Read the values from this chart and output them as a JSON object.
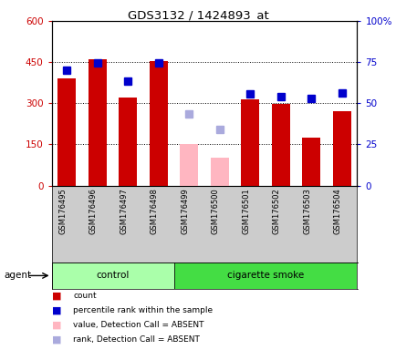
{
  "title": "GDS3132 / 1424893_at",
  "samples": [
    "GSM176495",
    "GSM176496",
    "GSM176497",
    "GSM176498",
    "GSM176499",
    "GSM176500",
    "GSM176501",
    "GSM176502",
    "GSM176503",
    "GSM176504"
  ],
  "count_values": [
    390,
    460,
    320,
    455,
    null,
    null,
    315,
    298,
    175,
    270
  ],
  "count_absent": [
    null,
    null,
    null,
    null,
    152,
    100,
    null,
    null,
    null,
    null
  ],
  "percentile_values": [
    420,
    448,
    380,
    448,
    null,
    null,
    335,
    325,
    318,
    338
  ],
  "percentile_absent": [
    null,
    null,
    null,
    null,
    260,
    205,
    null,
    null,
    null,
    null
  ],
  "left_ylim": [
    0,
    600
  ],
  "right_ylim": [
    0,
    100
  ],
  "left_yticks": [
    0,
    150,
    300,
    450,
    600
  ],
  "right_yticks": [
    0,
    25,
    50,
    75,
    100
  ],
  "right_yticklabels": [
    "0",
    "25",
    "50",
    "75",
    "100%"
  ],
  "left_yticklabels": [
    "0",
    "150",
    "300",
    "450",
    "600"
  ],
  "groups": [
    {
      "label": "control",
      "indices": [
        0,
        1,
        2,
        3
      ],
      "color": "#AAFFAA"
    },
    {
      "label": "cigarette smoke",
      "indices": [
        4,
        5,
        6,
        7,
        8,
        9
      ],
      "color": "#44DD44"
    }
  ],
  "bar_color_present": "#CC0000",
  "bar_color_absent": "#FFB6C1",
  "dot_color_present": "#0000CC",
  "dot_color_absent": "#AAAADD",
  "bg_color": "#FFFFFF",
  "plot_bg": "#FFFFFF",
  "label_bg": "#CCCCCC"
}
